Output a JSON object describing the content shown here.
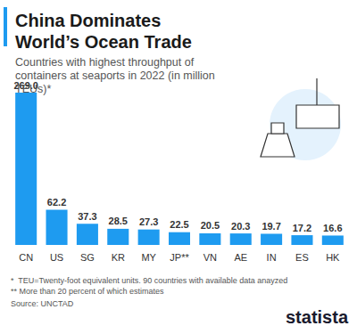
{
  "chart_data": {
    "type": "bar",
    "title": "China Dominates World’s Ocean Trade",
    "subtitle": "Countries with highest throughput of containers at seaports in 2022 (in million TEUs)*",
    "categories": [
      "CN",
      "US",
      "SG",
      "KR",
      "MY",
      "JP**",
      "VN",
      "AE",
      "IN",
      "ES",
      "HK"
    ],
    "values": [
      269.0,
      62.2,
      37.3,
      28.5,
      27.3,
      22.5,
      20.5,
      20.3,
      19.7,
      17.2,
      16.6
    ],
    "value_labels": [
      "269.0",
      "62.2",
      "37.3",
      "28.5",
      "27.3",
      "22.5",
      "20.5",
      "20.3",
      "19.7",
      "17.2",
      "16.6"
    ],
    "color": "#1e9bf0",
    "ylim": [
      0,
      269
    ],
    "tick_labels": false,
    "grid": false,
    "data_labels": true,
    "footnotes": [
      "*  TEU=Twenty-foot equivalent units. 90 countries with available data anayzed",
      "** More than 20 percent of which estimates"
    ],
    "source": "Source: UNCTAD",
    "logo": "statista"
  }
}
